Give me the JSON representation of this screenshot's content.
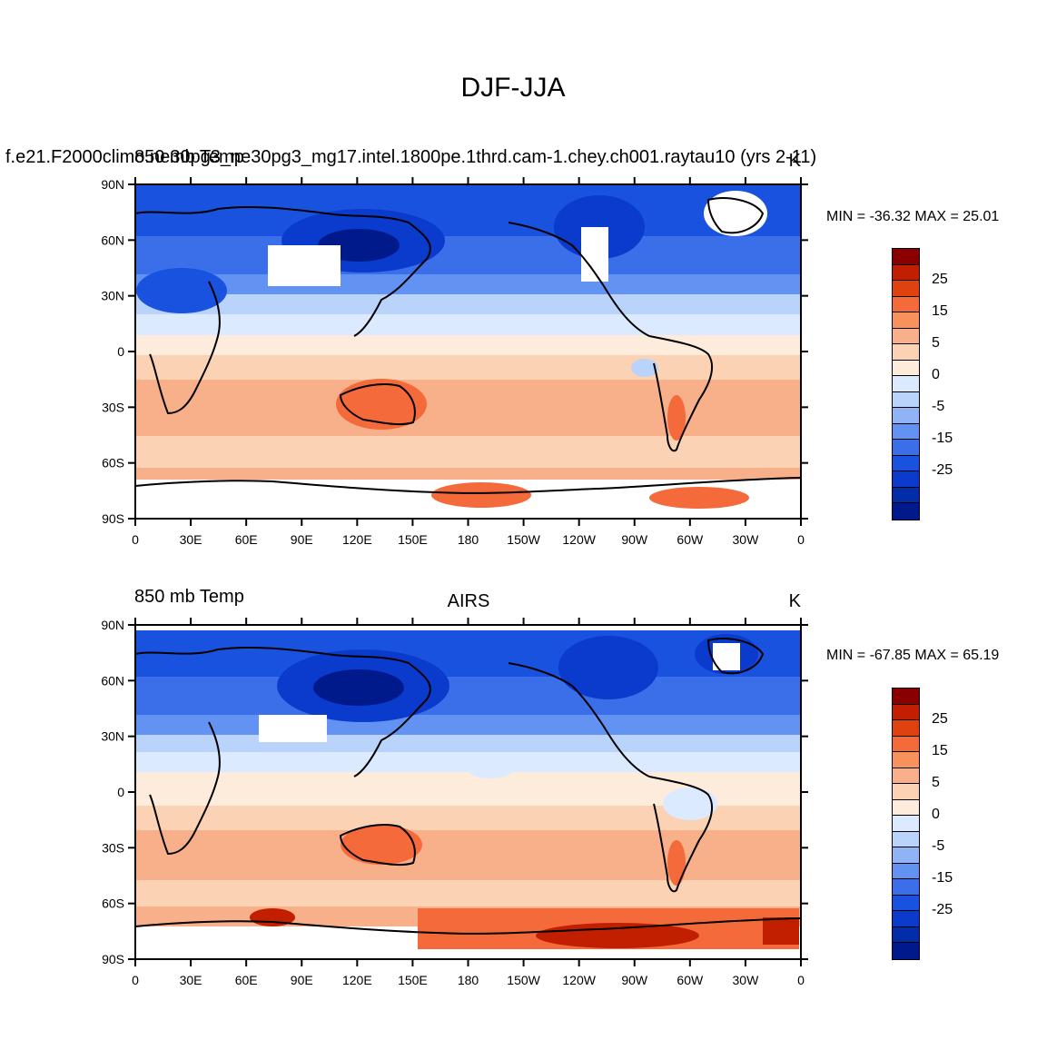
{
  "title": "DJF-JJA",
  "panels": [
    {
      "left_label": "f.e21.F2000climo.ne30pg3_ne30pg3_mg17.intel.1800pe.1thrd.cam-1.chey.ch001.raytau10 (yrs 2-11)",
      "left_overlay": "850 mb Temp",
      "center_label": "",
      "right_label": "K",
      "stats": "MIN = -36.32 MAX =  25.01",
      "min": -36.32,
      "max": 25.01
    },
    {
      "left_label": "850 mb Temp",
      "left_overlay": "",
      "center_label": "AIRS",
      "right_label": "K",
      "stats": "MIN = -67.85 MAX =  65.19",
      "min": -67.85,
      "max": 65.19
    }
  ],
  "lat_ticks": [
    "90N",
    "60N",
    "30N",
    "0",
    "30S",
    "60S",
    "90S"
  ],
  "lon_ticks": [
    "0",
    "30E",
    "60E",
    "90E",
    "120E",
    "150E",
    "180",
    "150W",
    "120W",
    "90W",
    "60W",
    "30W",
    "0"
  ],
  "colorbar": {
    "colors": [
      "#8a0000",
      "#c21f00",
      "#e0420f",
      "#f56a3a",
      "#f7925d",
      "#f8b08a",
      "#fbd3b4",
      "#fdebdc",
      "#dceaff",
      "#b9d3fb",
      "#8fb3f5",
      "#6393f2",
      "#3b6fea",
      "#1a52e0",
      "#0a3bcc",
      "#022da8",
      "#001a8c"
    ],
    "labels": [
      "25",
      "15",
      "5",
      "0",
      "-5",
      "-15",
      "-25"
    ]
  }
}
